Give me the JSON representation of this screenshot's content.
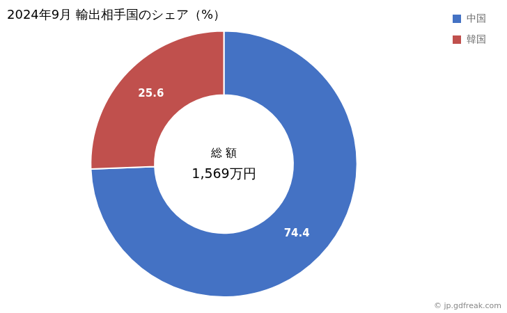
{
  "chart_data": {
    "type": "doughnut",
    "title": "2024年9月 輸出相手国のシェア（%）",
    "categories": [
      "中国",
      "韓国"
    ],
    "values": [
      74.4,
      25.6
    ],
    "colors": [
      "#4472C4",
      "#C0504D"
    ],
    "data_labels": true,
    "legend": "right",
    "center_text": [
      "総 額",
      "1,569万円"
    ],
    "watermark": "© jp.gdfreak.com"
  }
}
